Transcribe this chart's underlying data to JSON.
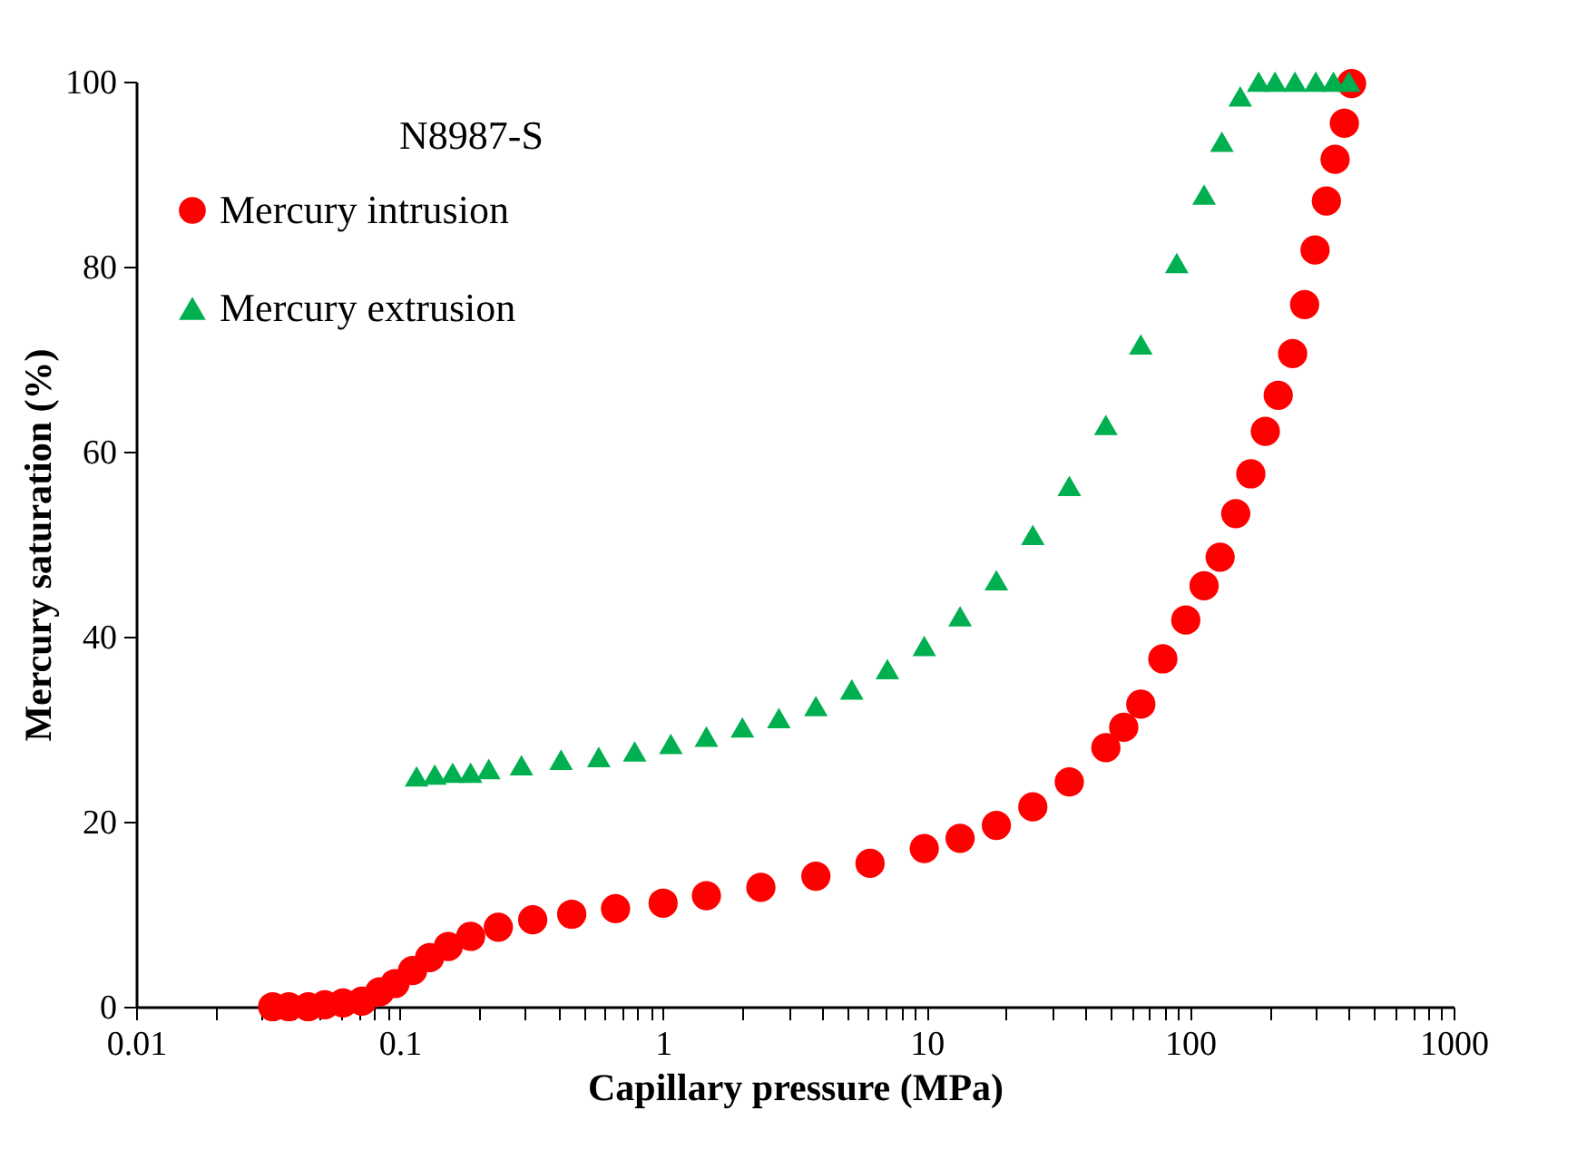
{
  "chart_data": {
    "type": "scatter",
    "annotations": [
      "N8987-S"
    ],
    "xlabel": "Capillary pressure (MPa)",
    "ylabel": "Mercury saturation (%)",
    "log": "x",
    "xlim": [
      0.01,
      1000
    ],
    "ylim": [
      0,
      100
    ],
    "xticks": [
      0.01,
      {
        "value": 0.02,
        "label": null
      },
      {
        "value": 0.03,
        "label": null
      },
      {
        "value": 0.04,
        "label": null
      },
      {
        "value": 0.05,
        "label": null
      },
      {
        "value": 0.06,
        "label": null
      },
      {
        "value": 0.07,
        "label": null
      },
      {
        "value": 0.08,
        "label": null
      },
      {
        "value": 0.09,
        "label": null
      },
      0.1,
      {
        "value": 0.2,
        "label": null
      },
      {
        "value": 0.3,
        "label": null
      },
      {
        "value": 0.4,
        "label": null
      },
      {
        "value": 0.5,
        "label": null
      },
      {
        "value": 0.6,
        "label": null
      },
      {
        "value": 0.7,
        "label": null
      },
      {
        "value": 0.8,
        "label": null
      },
      {
        "value": 0.9,
        "label": null
      },
      1,
      {
        "value": 2,
        "label": null
      },
      {
        "value": 3,
        "label": null
      },
      {
        "value": 4,
        "label": null
      },
      {
        "value": 5,
        "label": null
      },
      {
        "value": 6,
        "label": null
      },
      {
        "value": 7,
        "label": null
      },
      {
        "value": 8,
        "label": null
      },
      {
        "value": 9,
        "label": null
      },
      10,
      {
        "value": 20,
        "label": null
      },
      {
        "value": 30,
        "label": null
      },
      {
        "value": 40,
        "label": null
      },
      {
        "value": 50,
        "label": null
      },
      {
        "value": 60,
        "label": null
      },
      {
        "value": 70,
        "label": null
      },
      {
        "value": 80,
        "label": null
      },
      {
        "value": 90,
        "label": null
      },
      100,
      {
        "value": 200,
        "label": null
      },
      {
        "value": 300,
        "label": null
      },
      {
        "value": 400,
        "label": null
      },
      {
        "value": 500,
        "label": null
      },
      {
        "value": 600,
        "label": null
      },
      {
        "value": 700,
        "label": null
      },
      {
        "value": 800,
        "label": null
      },
      {
        "value": 900,
        "label": null
      },
      1000
    ],
    "yticks": [
      0,
      20,
      40,
      60,
      80,
      100
    ],
    "grid": false,
    "legend": "top left",
    "series": [
      {
        "name": "Mercury intrusion",
        "color": "#ff0000",
        "marker": "circle",
        "x": [
          0.033,
          0.038,
          0.045,
          0.052,
          0.061,
          0.072,
          0.084,
          0.096,
          0.112,
          0.13,
          0.153,
          0.186,
          0.237,
          0.32,
          0.45,
          0.66,
          1,
          1.46,
          2.35,
          3.8,
          6.1,
          9.8,
          13.4,
          18.4,
          25.3,
          34.8,
          47.9,
          56,
          65,
          78.8,
          96.3,
          113,
          130,
          149,
          170,
          193,
          216,
          245,
          272,
          298,
          329,
          355,
          385,
          410
        ],
        "values": [
          0,
          0,
          0,
          0.2,
          0.4,
          0.6,
          1.6,
          2.5,
          3.9,
          5.3,
          6.5,
          7.6,
          8.6,
          9.4,
          10,
          10.6,
          11.2,
          12,
          12.9,
          14.1,
          15.5,
          17.1,
          18.2,
          19.6,
          21.6,
          24.3,
          28,
          30.2,
          32.7,
          37.6,
          41.8,
          45.5,
          48.6,
          53.3,
          57.6,
          62.2,
          66.1,
          70.6,
          75.9,
          81.8,
          87.1,
          91.6,
          95.5,
          99.8
        ]
      },
      {
        "name": "Mercury extrusion",
        "color": "#00b050",
        "marker": "triangle",
        "x": [
          0.116,
          0.136,
          0.159,
          0.186,
          0.218,
          0.29,
          0.41,
          0.57,
          0.78,
          1.07,
          1.46,
          2,
          2.75,
          3.8,
          5.2,
          7.1,
          9.8,
          13.4,
          18.4,
          25.3,
          34.8,
          47.9,
          65,
          89,
          113,
          132,
          155,
          182,
          210,
          250,
          300,
          350,
          400
        ],
        "values": [
          24.9,
          25.1,
          25.3,
          25.3,
          25.7,
          26.1,
          26.7,
          27,
          27.6,
          28.4,
          29.2,
          30.2,
          31.2,
          32.5,
          34.3,
          36.5,
          39,
          42.2,
          46.1,
          51,
          56.3,
          62.9,
          71.6,
          80.4,
          87.8,
          93.5,
          98.4,
          100,
          100,
          100,
          100,
          100,
          100
        ]
      }
    ]
  }
}
